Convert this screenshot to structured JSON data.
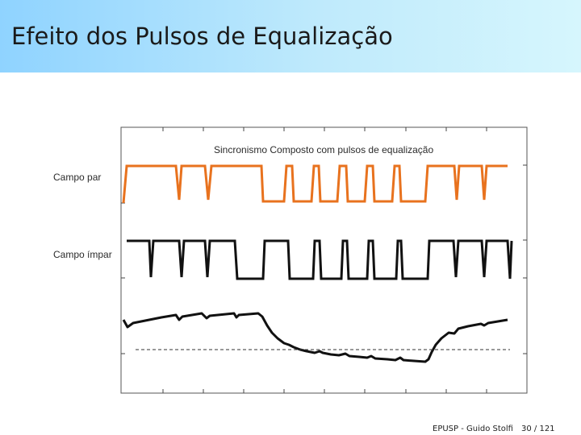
{
  "slide": {
    "title": "Efeito dos Pulsos de Equalização",
    "footer_source": "EPUSP - Guido Stolfi",
    "footer_page": "30 / 121"
  },
  "figure": {
    "caption": "Sincronismo Composto com pulsos de equalização",
    "label_even": "Campo par",
    "label_odd": "Campo ímpar"
  },
  "colors": {
    "even_field": "#e8721e",
    "odd_field": "#000000",
    "title_gradient_start": "#8fd3ff",
    "title_gradient_end": "#d6f6fd"
  }
}
